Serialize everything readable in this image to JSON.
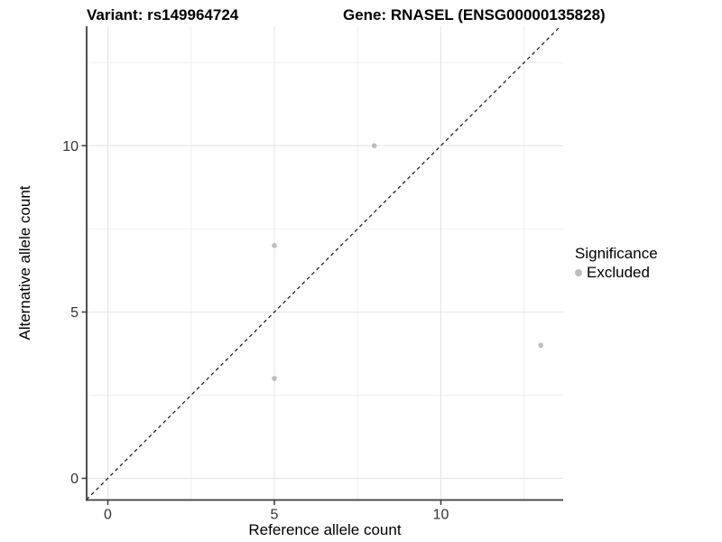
{
  "header": {
    "title_left": "Variant: rs149964724",
    "title_right": "Gene: RNASEL (ENSG00000135828)"
  },
  "chart_data": {
    "type": "scatter",
    "xlabel": "Reference allele count",
    "ylabel": "Alternative allele count",
    "x_ticks": [
      0,
      5,
      10
    ],
    "y_ticks": [
      0,
      5,
      10
    ],
    "x_minor_ticks": [
      2.5,
      7.5,
      12.5
    ],
    "y_minor_ticks": [
      2.5,
      7.5,
      12.5
    ],
    "xlim": [
      -0.64,
      13.67
    ],
    "ylim": [
      -0.67,
      13.6
    ],
    "grid": true,
    "identity_line": {
      "style": "dashed",
      "slope": 1,
      "intercept": 0
    },
    "series": [
      {
        "name": "Excluded",
        "points": [
          {
            "x": 5,
            "y": 3
          },
          {
            "x": 5,
            "y": 7
          },
          {
            "x": 8,
            "y": 10
          },
          {
            "x": 13,
            "y": 4
          }
        ]
      }
    ],
    "legend": {
      "title": "Significance",
      "position": "right",
      "items": [
        {
          "label": "Excluded",
          "color": "#bdbdbd"
        }
      ]
    }
  },
  "colors": {
    "point": "#bdbdbd",
    "grid_major": "#e4e4e4",
    "grid_minor": "#efefef",
    "axis_line": "#3c3c3c",
    "tick_label": "#333333",
    "identity_line": "#111111",
    "background": "#ffffff"
  }
}
